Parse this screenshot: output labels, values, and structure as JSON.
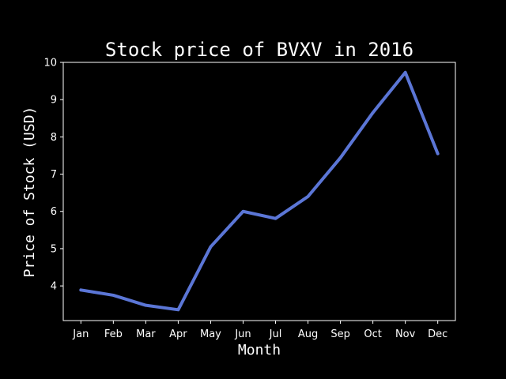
{
  "chart_data": {
    "type": "line",
    "title": "Stock price of BVXV in 2016",
    "xlabel": "Month",
    "ylabel": "Price of Stock (USD)",
    "categories": [
      "Jan",
      "Feb",
      "Mar",
      "Apr",
      "May",
      "Jun",
      "Jul",
      "Aug",
      "Sep",
      "Oct",
      "Nov",
      "Dec"
    ],
    "series": [
      {
        "values": [
          3.89,
          3.75,
          3.48,
          3.36,
          5.05,
          6.0,
          5.81,
          6.4,
          7.44,
          8.65,
          9.73,
          7.55
        ]
      }
    ],
    "ylim": [
      3.07,
      10.0
    ],
    "yticks": [
      4,
      5,
      6,
      7,
      8,
      9,
      10
    ],
    "grid": false,
    "background_color": "#000000",
    "line_color": "#5b76d6",
    "text_color": "#ffffff"
  }
}
